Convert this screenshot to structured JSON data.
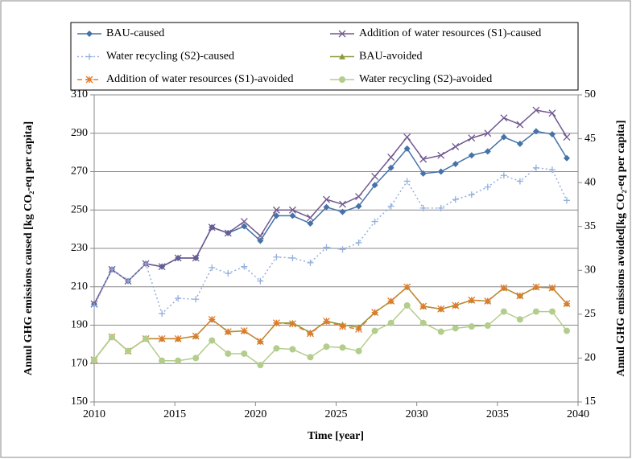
{
  "chart_data": {
    "type": "line",
    "xlabel": "Time [year]",
    "ylabel": "Annul GHG emissions caused [kg CO₂-eq per capita]",
    "y2label": "Annul GHG emissions avoided[kg CO₂-eq per capita]",
    "x": [
      2010,
      2011.1,
      2012.1,
      2013.2,
      2014.2,
      2015.2,
      2016.3,
      2017.3,
      2018.3,
      2019.3,
      2020.3,
      2021.3,
      2022.3,
      2023.4,
      2024.4,
      2025.4,
      2026.4,
      2027.4,
      2028.4,
      2029.4,
      2030.4,
      2031.5,
      2032.4,
      2033.4,
      2034.4,
      2035.4,
      2036.4,
      2037.4,
      2038.4,
      2039.3
    ],
    "xlim": [
      2010,
      2040
    ],
    "xticks": [
      2010,
      2015,
      2020,
      2025,
      2030,
      2035,
      2040
    ],
    "ylim": [
      150,
      310
    ],
    "yticks": [
      150,
      170,
      190,
      210,
      230,
      250,
      270,
      290,
      310
    ],
    "y2lim": [
      15,
      50
    ],
    "y2ticks": [
      15,
      20,
      25,
      30,
      35,
      40,
      45,
      50
    ],
    "grid": true,
    "legend": "top",
    "series": [
      {
        "name": "BAU-caused",
        "color": "#4572a7",
        "marker": "diamond",
        "line_style": "solid",
        "values": [
          201,
          219,
          213,
          222,
          220.5,
          225,
          225,
          241,
          238,
          241.5,
          234,
          247,
          247,
          243,
          251.5,
          249,
          252,
          263,
          272,
          282,
          269,
          270,
          274,
          278.5,
          280.5,
          288,
          284.5,
          291,
          289.5,
          277
        ]
      },
      {
        "name": "Addition of water resources (S1)-caused",
        "color": "#71588f",
        "marker": "x",
        "line_style": "solid",
        "values": [
          201,
          219,
          213,
          222,
          220.5,
          225,
          225,
          241,
          238,
          244,
          236.5,
          250,
          250,
          246,
          255.5,
          253,
          257,
          267.5,
          277.5,
          288,
          276.5,
          278.5,
          283,
          287.5,
          290,
          298,
          294.5,
          302,
          300.5,
          288
        ]
      },
      {
        "name": "Water recycling (S2)-caused",
        "color": "#93afdc",
        "marker": "plus",
        "line_style": "dotted",
        "values": [
          200,
          219,
          213,
          222,
          196,
          204,
          203.5,
          220,
          217,
          220.5,
          213,
          225.5,
          225,
          222.5,
          230.5,
          229.5,
          233,
          244,
          252,
          265,
          251,
          251,
          255.5,
          258,
          262,
          268,
          265,
          272,
          271,
          255
        ]
      },
      {
        "name": "BAU-avoided",
        "color": "#8c9a3c",
        "marker": "triangle",
        "line_style": "solid",
        "axis": "y2",
        "values": [
          19.8,
          22.4,
          20.8,
          22.2,
          22.2,
          22.2,
          22.5,
          24.4,
          23.0,
          23.1,
          21.9,
          24.0,
          24.0,
          22.9,
          24.2,
          23.8,
          23.5,
          25.2,
          26.5,
          28.1,
          25.9,
          25.6,
          26.0,
          26.6,
          26.5,
          28.0,
          27.1,
          28.1,
          28.0,
          26.2
        ]
      },
      {
        "name": "Addition of water resources (S1)-avoided",
        "color": "#e07b2c",
        "marker": "asterisk",
        "line_style": "dashed",
        "axis": "y2",
        "values": [
          19.8,
          22.4,
          20.8,
          22.2,
          22.2,
          22.2,
          22.5,
          24.4,
          23.0,
          23.1,
          21.9,
          24.0,
          23.9,
          22.8,
          24.2,
          23.6,
          23.3,
          25.2,
          26.5,
          28.1,
          25.9,
          25.6,
          26.0,
          26.6,
          26.5,
          28.0,
          27.1,
          28.1,
          28.0,
          26.2
        ]
      },
      {
        "name": "Water recycling (S2)-avoided",
        "color": "#b3cd8c",
        "marker": "circle",
        "line_style": "solid",
        "axis": "y2",
        "values": [
          19.8,
          22.4,
          20.8,
          22.2,
          19.7,
          19.7,
          20.0,
          22.0,
          20.5,
          20.5,
          19.2,
          21.1,
          21.0,
          20.1,
          21.3,
          21.2,
          20.8,
          23.1,
          24.0,
          26.0,
          24.0,
          23.0,
          23.4,
          23.6,
          23.7,
          25.3,
          24.4,
          25.3,
          25.3,
          23.1
        ]
      }
    ]
  }
}
